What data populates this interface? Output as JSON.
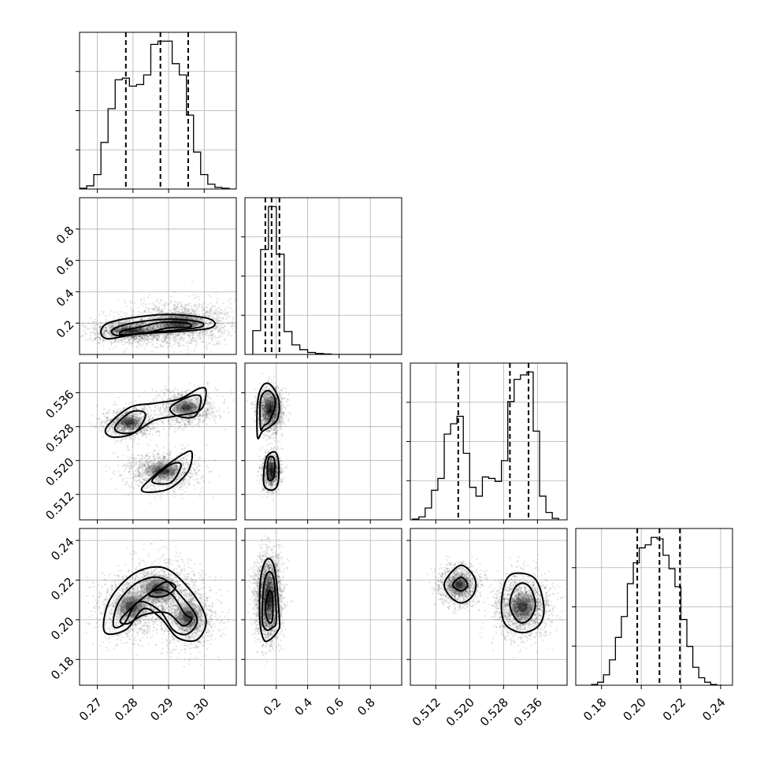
{
  "chart_data": {
    "type": "corner",
    "grid": true,
    "parameters": [
      {
        "range": [
          0.265,
          0.309
        ],
        "ticks": [
          "0.27",
          "0.28",
          "0.29",
          "0.30"
        ],
        "tick_values": [
          0.27,
          0.28,
          0.29,
          0.3
        ],
        "quantiles": [
          0.278,
          0.2877,
          0.2955
        ],
        "histogram": {
          "edges": [
            0.265,
            0.267,
            0.269,
            0.271,
            0.273,
            0.275,
            0.277,
            0.279,
            0.281,
            0.283,
            0.285,
            0.287,
            0.289,
            0.291,
            0.293,
            0.295,
            0.297,
            0.299,
            0.301,
            0.303,
            0.305,
            0.307,
            0.309
          ],
          "counts": [
            0.5,
            2,
            9,
            29,
            50,
            68,
            69,
            64,
            65,
            71,
            90,
            92,
            92,
            78,
            71,
            46,
            23,
            9,
            3,
            1,
            0.5,
            0
          ]
        }
      },
      {
        "range": [
          0.0,
          1.0
        ],
        "ticks": [
          "0.2",
          "0.4",
          "0.6",
          "0.8"
        ],
        "tick_values": [
          0.2,
          0.4,
          0.6,
          0.8
        ],
        "quantiles": [
          0.13,
          0.17,
          0.22
        ],
        "histogram": {
          "edges": [
            0.05,
            0.1,
            0.15,
            0.2,
            0.25,
            0.3,
            0.35,
            0.4,
            0.45,
            0.5,
            0.55,
            0.6,
            0.65,
            0.7,
            0.75,
            0.8,
            0.85,
            0.9,
            0.95,
            1.0
          ],
          "counts": [
            25,
            110,
            155,
            105,
            24,
            10,
            5,
            2,
            1,
            0.5,
            0,
            0,
            0,
            0,
            0,
            0,
            0,
            0,
            0
          ]
        }
      },
      {
        "range": [
          0.506,
          0.543
        ],
        "ticks": [
          "0.512",
          "0.520",
          "0.528",
          "0.536"
        ],
        "tick_values": [
          0.512,
          0.52,
          0.528,
          0.536
        ],
        "quantiles": [
          0.5173,
          0.5295,
          0.5339
        ],
        "histogram": {
          "edges": [
            0.5065,
            0.508,
            0.5095,
            0.511,
            0.5125,
            0.514,
            0.5155,
            0.517,
            0.5185,
            0.52,
            0.5215,
            0.523,
            0.5245,
            0.526,
            0.5275,
            0.529,
            0.5305,
            0.532,
            0.5335,
            0.535,
            0.5365,
            0.538,
            0.5395,
            0.541
          ],
          "counts": [
            0.5,
            2,
            8,
            20,
            28,
            58,
            65,
            70,
            45,
            22,
            16,
            29,
            28,
            26,
            40,
            80,
            95,
            98,
            100,
            60,
            16,
            5,
            1
          ]
        }
      },
      {
        "range": [
          0.167,
          0.246
        ],
        "ticks": [
          "0.18",
          "0.20",
          "0.22",
          "0.24"
        ],
        "tick_values": [
          0.18,
          0.2,
          0.22,
          0.24
        ],
        "quantiles": [
          0.198,
          0.2092,
          0.2195
        ],
        "histogram": {
          "edges": [
            0.175,
            0.178,
            0.181,
            0.184,
            0.187,
            0.19,
            0.193,
            0.196,
            0.199,
            0.202,
            0.205,
            0.208,
            0.211,
            0.214,
            0.217,
            0.22,
            0.223,
            0.226,
            0.229,
            0.232,
            0.235,
            0.238,
            0.241
          ],
          "counts": [
            0.5,
            2,
            7,
            17,
            32,
            46,
            68,
            82,
            92,
            94,
            99,
            98,
            87,
            78,
            66,
            44,
            26,
            12,
            5,
            2,
            0.5,
            0
          ]
        }
      }
    ],
    "pairs": [
      {
        "x": 0,
        "y": 1,
        "modes": [
          {
            "mx": 0.2795,
            "my": 0.15,
            "sx": 0.0048,
            "sy": 0.03,
            "w": 0.5
          },
          {
            "mx": 0.293,
            "my": 0.2,
            "sx": 0.0065,
            "sy": 0.06,
            "w": 0.5
          }
        ],
        "contours": [
          [
            [
              0.273,
              0.1
            ],
            [
              0.281,
              0.13
            ],
            [
              0.292,
              0.145
            ],
            [
              0.301,
              0.165
            ],
            [
              0.303,
              0.2
            ],
            [
              0.3,
              0.235
            ],
            [
              0.29,
              0.255
            ],
            [
              0.28,
              0.235
            ],
            [
              0.273,
              0.2
            ],
            [
              0.271,
              0.145
            ]
          ],
          [
            [
              0.276,
              0.12
            ],
            [
              0.284,
              0.14
            ],
            [
              0.292,
              0.155
            ],
            [
              0.299,
              0.175
            ],
            [
              0.299,
              0.205
            ],
            [
              0.292,
              0.225
            ],
            [
              0.284,
              0.215
            ],
            [
              0.277,
              0.185
            ],
            [
              0.274,
              0.15
            ]
          ],
          [
            [
              0.277,
              0.125
            ],
            [
              0.284,
              0.14
            ],
            [
              0.29,
              0.17
            ],
            [
              0.296,
              0.175
            ],
            [
              0.295,
              0.2
            ],
            [
              0.288,
              0.205
            ],
            [
              0.282,
              0.175
            ],
            [
              0.277,
              0.15
            ]
          ]
        ]
      },
      {
        "x": 0,
        "y": 2,
        "modes": [
          {
            "mx": 0.279,
            "my": 0.529,
            "sx": 0.0032,
            "sy": 0.0016,
            "w": 0.33
          },
          {
            "mx": 0.295,
            "my": 0.5325,
            "sx": 0.0038,
            "sy": 0.0018,
            "w": 0.3
          },
          {
            "mx": 0.2885,
            "my": 0.5175,
            "sx": 0.0045,
            "sy": 0.0019,
            "w": 0.37
          }
        ],
        "contours": [
          [
            [
              0.2725,
              0.5277
            ],
            [
              0.279,
              0.5325
            ],
            [
              0.286,
              0.5335
            ],
            [
              0.293,
              0.5345
            ],
            [
              0.2985,
              0.537
            ],
            [
              0.3005,
              0.5365
            ],
            [
              0.299,
              0.532
            ],
            [
              0.292,
              0.5305
            ],
            [
              0.286,
              0.5295
            ],
            [
              0.2795,
              0.5262
            ],
            [
              0.274,
              0.5256
            ]
          ],
          [
            [
              0.2825,
              0.5135
            ],
            [
              0.2875,
              0.5175
            ],
            [
              0.2935,
              0.5212
            ],
            [
              0.2965,
              0.522
            ],
            [
              0.2955,
              0.5175
            ],
            [
              0.2905,
              0.5135
            ],
            [
              0.2845,
              0.5125
            ]
          ],
          [
            [
              0.275,
              0.528
            ],
            [
              0.2795,
              0.5315
            ],
            [
              0.2835,
              0.531
            ],
            [
              0.281,
              0.527
            ],
            [
              0.2765,
              0.5265
            ]
          ],
          [
            [
              0.2905,
              0.5325
            ],
            [
              0.2955,
              0.535
            ],
            [
              0.299,
              0.535
            ],
            [
              0.2975,
              0.5305
            ],
            [
              0.2925,
              0.5305
            ]
          ],
          [
            [
              0.2855,
              0.5155
            ],
            [
              0.2905,
              0.519
            ],
            [
              0.2935,
              0.519
            ],
            [
              0.291,
              0.515
            ],
            [
              0.287,
              0.5145
            ]
          ]
        ]
      },
      {
        "x": 1,
        "y": 2,
        "modes": [
          {
            "mx": 0.16,
            "my": 0.532,
            "sx": 0.035,
            "sy": 0.0022,
            "w": 0.6
          },
          {
            "mx": 0.17,
            "my": 0.5175,
            "sx": 0.025,
            "sy": 0.0018,
            "w": 0.4
          }
        ],
        "contours": [
          [
            [
              0.08,
              0.5255
            ],
            [
              0.08,
              0.5335
            ],
            [
              0.11,
              0.5375
            ],
            [
              0.16,
              0.538
            ],
            [
              0.215,
              0.5345
            ],
            [
              0.21,
              0.53
            ],
            [
              0.16,
              0.528
            ],
            [
              0.11,
              0.5268
            ]
          ],
          [
            [
              0.1,
              0.5275
            ],
            [
              0.1,
              0.5345
            ],
            [
              0.15,
              0.5365
            ],
            [
              0.195,
              0.534
            ],
            [
              0.16,
              0.5295
            ],
            [
              0.12,
              0.5282
            ]
          ],
          [
            [
              0.12,
              0.5145
            ],
            [
              0.135,
              0.5205
            ],
            [
              0.19,
              0.522
            ],
            [
              0.215,
              0.5195
            ],
            [
              0.21,
              0.5145
            ],
            [
              0.17,
              0.513
            ]
          ],
          [
            [
              0.145,
              0.516
            ],
            [
              0.15,
              0.5205
            ],
            [
              0.185,
              0.5205
            ],
            [
              0.19,
              0.5175
            ],
            [
              0.175,
              0.5155
            ]
          ]
        ]
      },
      {
        "x": 0,
        "y": 3,
        "modes": [
          {
            "mx": 0.2795,
            "my": 0.2065,
            "sx": 0.0042,
            "sy": 0.007,
            "w": 0.33
          },
          {
            "mx": 0.287,
            "my": 0.2155,
            "sx": 0.0045,
            "sy": 0.0065,
            "w": 0.35
          },
          {
            "mx": 0.2955,
            "my": 0.2015,
            "sx": 0.0037,
            "sy": 0.0072,
            "w": 0.32
          }
        ],
        "contours": [
          [
            [
              0.272,
              0.194
            ],
            [
              0.2735,
              0.21
            ],
            [
              0.2805,
              0.2235
            ],
            [
              0.289,
              0.226
            ],
            [
              0.2965,
              0.214
            ],
            [
              0.3005,
              0.2
            ],
            [
              0.298,
              0.19
            ],
            [
              0.2925,
              0.191
            ],
            [
              0.288,
              0.2005
            ],
            [
              0.283,
              0.2055
            ],
            [
              0.278,
              0.195
            ]
          ],
          [
            [
              0.2745,
              0.197
            ],
            [
              0.276,
              0.209
            ],
            [
              0.2815,
              0.219
            ],
            [
              0.288,
              0.221
            ],
            [
              0.2935,
              0.212
            ],
            [
              0.298,
              0.2005
            ],
            [
              0.2955,
              0.193
            ],
            [
              0.2915,
              0.1945
            ],
            [
              0.2875,
              0.2045
            ],
            [
              0.2815,
              0.209
            ],
            [
              0.2775,
              0.198
            ]
          ],
          [
            [
              0.2765,
              0.2
            ],
            [
              0.2815,
              0.209
            ],
            [
              0.2865,
              0.215
            ],
            [
              0.291,
              0.2125
            ],
            [
              0.2945,
              0.203
            ],
            [
              0.2965,
              0.2005
            ],
            [
              0.294,
              0.197
            ],
            [
              0.2895,
              0.2035
            ],
            [
              0.283,
              0.2025
            ],
            [
              0.2785,
              0.198
            ]
          ],
          [
            [
              0.2845,
              0.2125
            ],
            [
              0.289,
              0.219
            ],
            [
              0.292,
              0.2165
            ],
            [
              0.289,
              0.212
            ]
          ]
        ]
      },
      {
        "x": 1,
        "y": 3,
        "modes": [
          {
            "mx": 0.15,
            "my": 0.211,
            "sx": 0.035,
            "sy": 0.009,
            "w": 1.0
          }
        ],
        "contours": [
          [
            [
              0.095,
              0.2
            ],
            [
              0.1,
              0.2205
            ],
            [
              0.14,
              0.2305
            ],
            [
              0.19,
              0.2255
            ],
            [
              0.22,
              0.2
            ],
            [
              0.21,
              0.1945
            ],
            [
              0.16,
              0.19
            ],
            [
              0.12,
              0.19
            ]
          ],
          [
            [
              0.11,
              0.2
            ],
            [
              0.12,
              0.217
            ],
            [
              0.15,
              0.224
            ],
            [
              0.185,
              0.22
            ],
            [
              0.2,
              0.2
            ],
            [
              0.175,
              0.196
            ],
            [
              0.135,
              0.195
            ]
          ],
          [
            [
              0.13,
              0.205
            ],
            [
              0.15,
              0.214
            ],
            [
              0.175,
              0.212
            ],
            [
              0.175,
              0.2
            ],
            [
              0.15,
              0.199
            ]
          ]
        ]
      },
      {
        "x": 2,
        "y": 3,
        "modes": [
          {
            "mx": 0.5175,
            "my": 0.2175,
            "sx": 0.0022,
            "sy": 0.0045,
            "w": 0.4
          },
          {
            "mx": 0.5325,
            "my": 0.2065,
            "sx": 0.0028,
            "sy": 0.0065,
            "w": 0.6
          }
        ],
        "contours": [
          [
            [
              0.514,
              0.2175
            ],
            [
              0.5155,
              0.2235
            ],
            [
              0.518,
              0.2275
            ],
            [
              0.5205,
              0.2235
            ],
            [
              0.5215,
              0.2175
            ],
            [
              0.5205,
              0.2115
            ],
            [
              0.518,
              0.2085
            ],
            [
              0.5155,
              0.2115
            ]
          ],
          [
            [
              0.5275,
              0.207
            ],
            [
              0.5285,
              0.2195
            ],
            [
              0.531,
              0.2235
            ],
            [
              0.5355,
              0.2205
            ],
            [
              0.5375,
              0.207
            ],
            [
              0.5365,
              0.1975
            ],
            [
              0.5325,
              0.1935
            ],
            [
              0.5285,
              0.1975
            ]
          ],
          [
            [
              0.5295,
              0.207
            ],
            [
              0.5305,
              0.2155
            ],
            [
              0.5325,
              0.2185
            ],
            [
              0.5345,
              0.2155
            ],
            [
              0.5355,
              0.207
            ],
            [
              0.534,
              0.2
            ],
            [
              0.5315,
              0.199
            ]
          ],
          [
            [
              0.516,
              0.2175
            ],
            [
              0.518,
              0.2215
            ],
            [
              0.5195,
              0.2175
            ],
            [
              0.518,
              0.2145
            ]
          ]
        ]
      }
    ]
  }
}
